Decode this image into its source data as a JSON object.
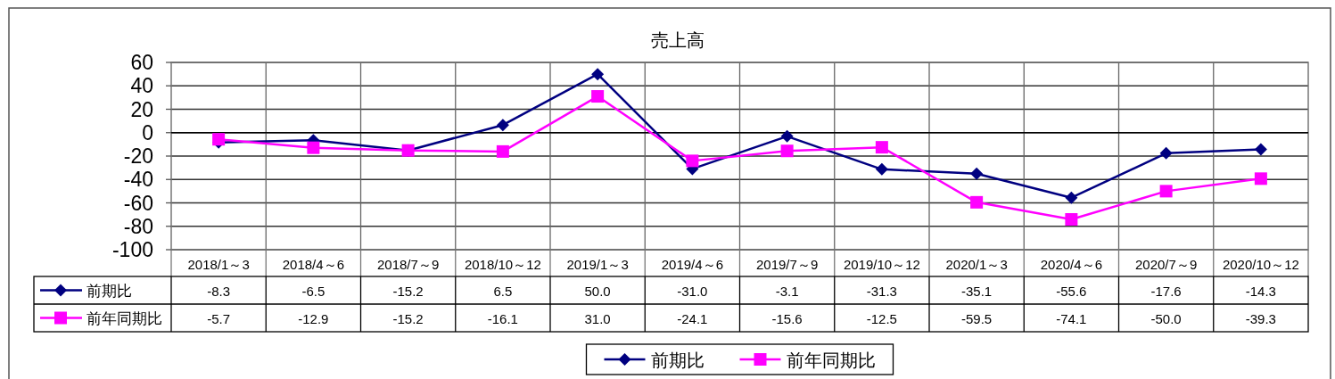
{
  "chart_data": {
    "type": "line",
    "title": "売上高",
    "categories": [
      "2018/1～3",
      "2018/4～6",
      "2018/7～9",
      "2018/10～12",
      "2019/1～3",
      "2019/4～6",
      "2019/7～9",
      "2019/10～12",
      "2020/1～3",
      "2020/4～6",
      "2020/7～9",
      "2020/10～12"
    ],
    "series": [
      {
        "name": "前期比",
        "color": "#000080",
        "marker": "diamond",
        "values": [
          -8.3,
          -6.5,
          -15.2,
          6.5,
          50.0,
          -31.0,
          -3.1,
          -31.3,
          -35.1,
          -55.6,
          -17.6,
          -14.3
        ],
        "value_labels": [
          "-8.3",
          "-6.5",
          "-15.2",
          "6.5",
          "50.0",
          "-31.0",
          "-3.1",
          "-31.3",
          "-35.1",
          "-55.6",
          "-17.6",
          "-14.3"
        ]
      },
      {
        "name": "前年同期比",
        "color": "#ff00ff",
        "marker": "square",
        "values": [
          -5.7,
          -12.9,
          -15.2,
          -16.1,
          31.0,
          -24.1,
          -15.6,
          -12.5,
          -59.5,
          -74.1,
          -50.0,
          -39.3
        ],
        "value_labels": [
          "-5.7",
          "-12.9",
          "-15.2",
          "-16.1",
          "31.0",
          "-24.1",
          "-15.6",
          "-12.5",
          "-59.5",
          "-74.1",
          "-50.0",
          "-39.3"
        ]
      }
    ],
    "ylim": [
      -100,
      60
    ],
    "yticks": [
      60,
      40,
      20,
      0,
      -20,
      -40,
      -60,
      -80,
      -100
    ],
    "grid": true,
    "legend": "bottom"
  }
}
